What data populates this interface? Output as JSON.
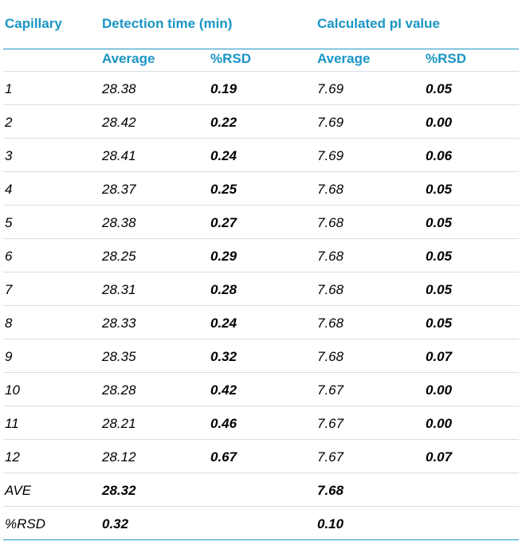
{
  "headers": {
    "capillary": "Capillary",
    "detection_time": "Detection time (min)",
    "calculated_pi": "Calculated pI value",
    "average_1": "Average",
    "rsd_1": "%RSD",
    "average_2": "Average",
    "rsd_2": "%RSD"
  },
  "rows": [
    {
      "capillary": "1",
      "det_avg": "28.38",
      "det_rsd": "0.19",
      "pi_avg": "7.69",
      "pi_rsd": "0.05"
    },
    {
      "capillary": "2",
      "det_avg": "28.42",
      "det_rsd": "0.22",
      "pi_avg": "7.69",
      "pi_rsd": "0.00"
    },
    {
      "capillary": "3",
      "det_avg": "28.41",
      "det_rsd": "0.24",
      "pi_avg": "7.69",
      "pi_rsd": "0.06"
    },
    {
      "capillary": "4",
      "det_avg": "28.37",
      "det_rsd": "0.25",
      "pi_avg": "7.68",
      "pi_rsd": "0.05"
    },
    {
      "capillary": "5",
      "det_avg": "28.38",
      "det_rsd": "0.27",
      "pi_avg": "7.68",
      "pi_rsd": "0.05"
    },
    {
      "capillary": "6",
      "det_avg": "28.25",
      "det_rsd": "0.29",
      "pi_avg": "7.68",
      "pi_rsd": "0.05"
    },
    {
      "capillary": "7",
      "det_avg": "28.31",
      "det_rsd": "0.28",
      "pi_avg": "7.68",
      "pi_rsd": "0.05"
    },
    {
      "capillary": "8",
      "det_avg": "28.33",
      "det_rsd": "0.24",
      "pi_avg": "7.68",
      "pi_rsd": "0.05"
    },
    {
      "capillary": "9",
      "det_avg": "28.35",
      "det_rsd": "0.32",
      "pi_avg": "7.68",
      "pi_rsd": "0.07"
    },
    {
      "capillary": "10",
      "det_avg": "28.28",
      "det_rsd": "0.42",
      "pi_avg": "7.67",
      "pi_rsd": "0.00"
    },
    {
      "capillary": "11",
      "det_avg": "28.21",
      "det_rsd": "0.46",
      "pi_avg": "7.67",
      "pi_rsd": "0.00"
    },
    {
      "capillary": "12",
      "det_avg": "28.12",
      "det_rsd": "0.67",
      "pi_avg": "7.67",
      "pi_rsd": "0.07"
    }
  ],
  "summary": {
    "ave_label": "AVE",
    "ave_det": "28.32",
    "ave_pi": "7.68",
    "rsd_label": "%RSD",
    "rsd_det": "0.32",
    "rsd_pi": "0.10"
  },
  "colors": {
    "header_text": "#1a95c4",
    "rule_line": "#1a95c4",
    "row_divider": "#d9dde3"
  }
}
